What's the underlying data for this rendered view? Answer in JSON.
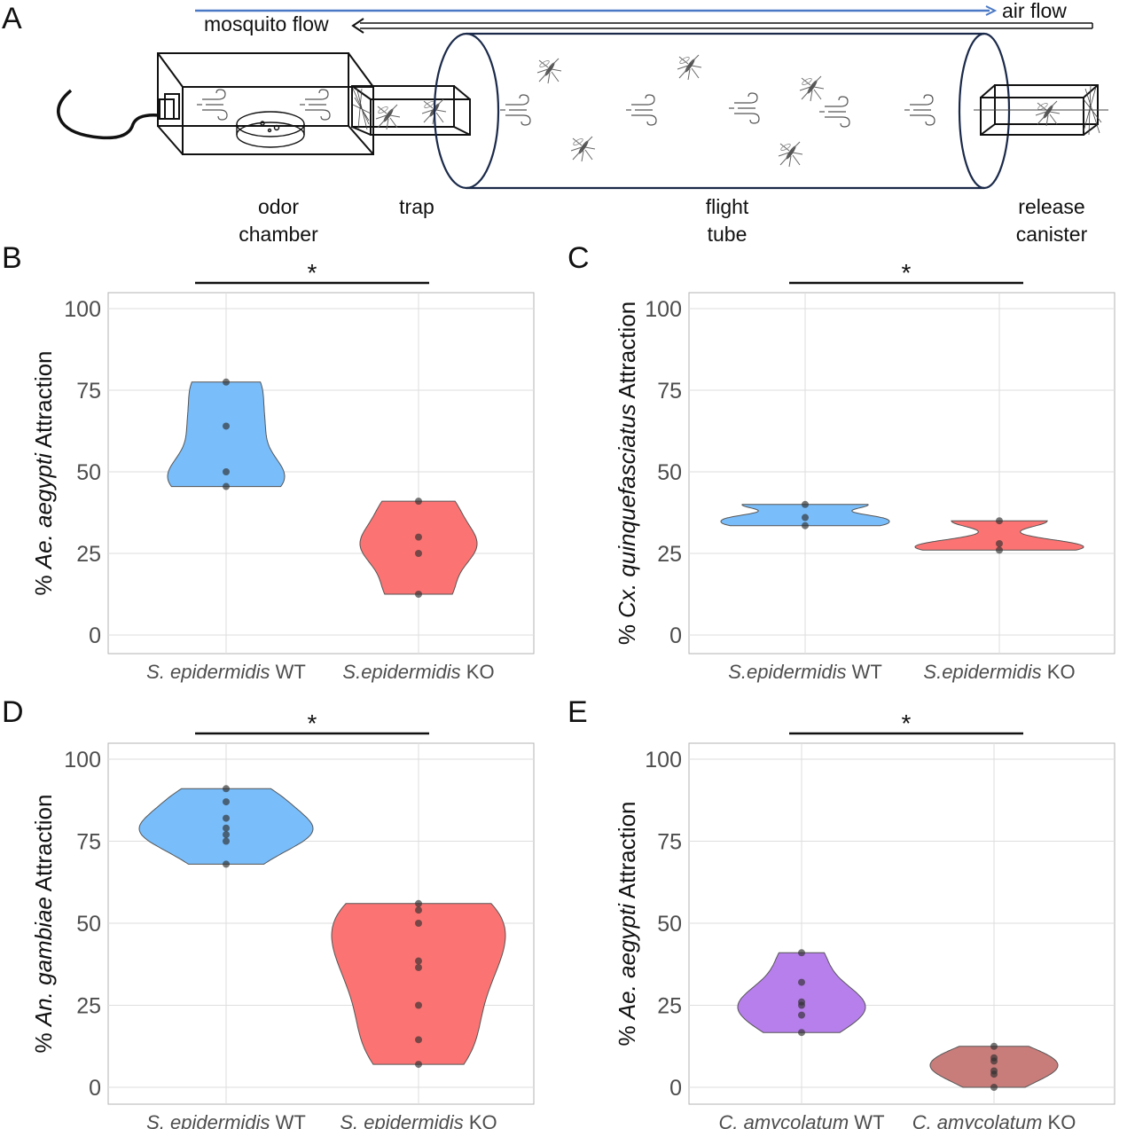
{
  "figure": {
    "panel_a": {
      "letter": "A",
      "mosquito_flow_label": "mosquito flow",
      "air_flow_label": "air flow",
      "component_labels": {
        "odor_chamber": [
          "odor",
          "chamber"
        ],
        "trap": [
          "trap"
        ],
        "flight_tube": [
          "flight",
          "tube"
        ],
        "release_canister": [
          "release",
          "canister"
        ]
      },
      "icons": [
        "mosquito-icon",
        "air-gust-icon",
        "petri-dish-icon",
        "mesh-screen-icon",
        "cable-icon"
      ]
    }
  },
  "colors": {
    "wt_blue": "#79bdfa",
    "ko_red": "#fb7473",
    "c_wt_purple": "#b77fec",
    "c_ko_brown": "#c97d7b",
    "point": "#2f2f2f",
    "grid": "#dedede",
    "axis_text": "#4d4d4d",
    "arrow_blue": "#4a78c4"
  },
  "chart_data": [
    {
      "panel": "B",
      "type": "violin",
      "ylabel": [
        "% ",
        "Ae. aegypti",
        " Attraction"
      ],
      "ylim": [
        0,
        100
      ],
      "yticks": [
        0,
        25,
        50,
        75,
        100
      ],
      "grid": true,
      "significance": "*",
      "categories": [
        {
          "label_italic": "S. epidermidis",
          "label_plain": " WT",
          "color_key": "wt_blue",
          "values": [
            45.5,
            50,
            64,
            77.5
          ]
        },
        {
          "label_italic": "S.epidermidis",
          "label_plain": " KO",
          "color_key": "ko_red",
          "values": [
            12.5,
            25,
            30,
            41
          ]
        }
      ]
    },
    {
      "panel": "C",
      "type": "violin",
      "ylabel": [
        "% ",
        "Cx. quinquefasciatus",
        " Attraction"
      ],
      "ylim": [
        0,
        100
      ],
      "yticks": [
        0,
        25,
        50,
        75,
        100
      ],
      "grid": true,
      "significance": "*",
      "categories": [
        {
          "label_italic": "S.epidermidis",
          "label_plain": " WT",
          "color_key": "wt_blue",
          "values": [
            33.5,
            36,
            40
          ]
        },
        {
          "label_italic": "S.epidermidis",
          "label_plain": " KO",
          "color_key": "ko_red",
          "values": [
            26,
            28,
            35
          ]
        }
      ]
    },
    {
      "panel": "D",
      "type": "violin",
      "ylabel": [
        "% ",
        "An. gambiae",
        " Attraction"
      ],
      "ylim": [
        0,
        100
      ],
      "yticks": [
        0,
        25,
        50,
        75,
        100
      ],
      "grid": true,
      "significance": "*",
      "categories": [
        {
          "label_italic": "S. epidermidis",
          "label_plain": " WT",
          "color_key": "wt_blue",
          "values": [
            68,
            75,
            77,
            79,
            82,
            87,
            91
          ]
        },
        {
          "label_italic": "S. epidermidis",
          "label_plain": " KO",
          "color_key": "ko_red",
          "values": [
            7,
            14.5,
            25,
            36.5,
            38.5,
            50,
            54,
            56
          ]
        }
      ]
    },
    {
      "panel": "E",
      "type": "violin",
      "ylabel": [
        "% ",
        "Ae. aegypti",
        " Attraction"
      ],
      "ylim": [
        0,
        100
      ],
      "yticks": [
        0,
        25,
        50,
        75,
        100
      ],
      "grid": true,
      "significance": "*",
      "categories": [
        {
          "label_italic": "C. amycolatum",
          "label_plain": " WT",
          "color_key": "c_wt_purple",
          "values": [
            16.7,
            22,
            25,
            26,
            32,
            41
          ]
        },
        {
          "label_italic": "C. amycolatum",
          "label_plain": " KO",
          "color_key": "c_ko_brown",
          "values": [
            0,
            4,
            5,
            8,
            9,
            12.5
          ]
        }
      ]
    }
  ]
}
